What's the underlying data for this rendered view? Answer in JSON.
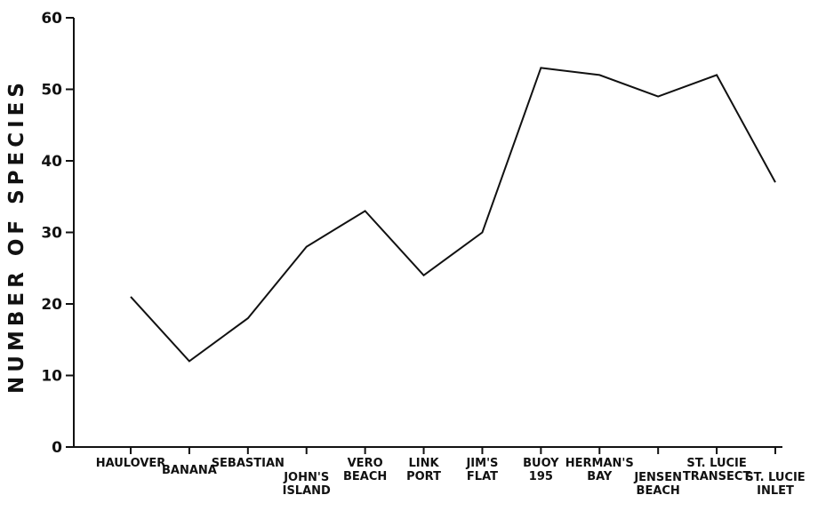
{
  "chart_data": {
    "type": "line",
    "ylabel": "NUMBER OF SPECIES",
    "xlabel": "",
    "ylim": [
      0,
      60
    ],
    "yticks": [
      0,
      10,
      20,
      30,
      40,
      50,
      60
    ],
    "categories": [
      [
        "HAULOVER"
      ],
      [
        "BANANA"
      ],
      [
        "SEBASTIAN"
      ],
      [
        "JOHN'S",
        "ISLAND"
      ],
      [
        "VERO",
        "BEACH"
      ],
      [
        "LINK",
        "PORT"
      ],
      [
        "JIM'S",
        "FLAT"
      ],
      [
        "BUOY",
        "195"
      ],
      [
        "HERMAN'S",
        "BAY"
      ],
      [
        "JENSEN",
        "BEACH"
      ],
      [
        "ST. LUCIE",
        "TRANSECT"
      ],
      [
        "ST. LUCIE",
        "INLET"
      ]
    ],
    "series": [
      {
        "values": [
          21,
          12,
          18,
          28,
          33,
          24,
          30,
          53,
          52,
          49,
          52,
          37
        ]
      }
    ],
    "grid": false,
    "line_color": "#111111"
  }
}
